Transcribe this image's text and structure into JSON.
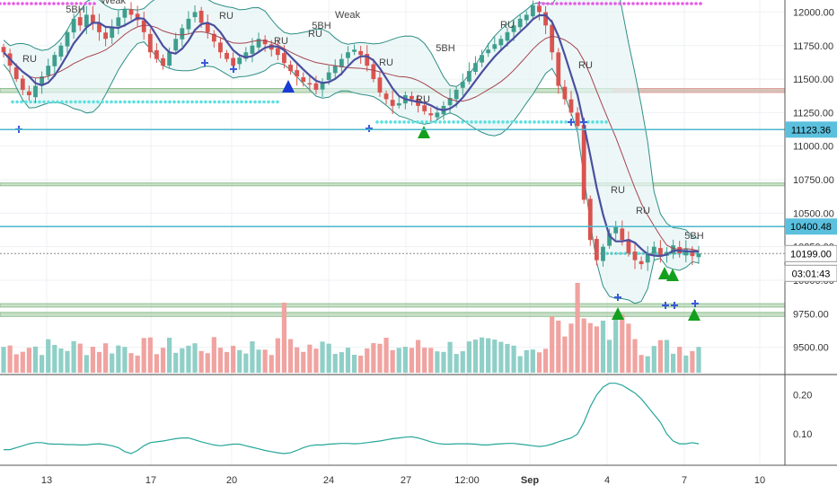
{
  "chart_data": [
    {
      "type": "candlestick",
      "panel": "price",
      "ylim": [
        9310,
        12090
      ],
      "y_ticks": [
        "12000.00",
        "11750.00",
        "11500.00",
        "11250.00",
        "11000.00",
        "10750.00",
        "10500.00",
        "10250.00",
        "10000.00",
        "9750.00",
        "9500.00"
      ],
      "x_ticks": [
        "13",
        "17",
        "20",
        "24",
        "27",
        "12:00",
        "Sep",
        "4",
        "7",
        "10"
      ],
      "price_tags": [
        {
          "label": "11123.36",
          "kind": "level",
          "color": "#5bc0de"
        },
        {
          "label": "10400.48",
          "kind": "level",
          "color": "#5bc0de"
        },
        {
          "label": "10199.00",
          "kind": "last",
          "color": "#ffffff"
        },
        {
          "label": "03:01:43",
          "kind": "countdown",
          "color": "#ffffff"
        }
      ],
      "horizontal_levels": [
        {
          "value": 11123.36,
          "color": "#48b9cc"
        },
        {
          "value": 10400.48,
          "color": "#48b9cc"
        },
        {
          "value": 10199,
          "color": "#888888",
          "dashed": true
        }
      ],
      "zones": [
        {
          "from": 11400,
          "to": 11430,
          "color": "#8fbf8f"
        },
        {
          "from": 11400,
          "to": 11430,
          "color": "#e0a0a0",
          "start": "late"
        },
        {
          "from": 10705,
          "to": 10725,
          "color": "#8fbf8f"
        },
        {
          "from": 9800,
          "to": 9825,
          "color": "#8fbf8f"
        },
        {
          "from": 9730,
          "to": 9760,
          "color": "#8fbf8f"
        }
      ],
      "signal_labels": [
        "5BH",
        "Weak",
        "RU",
        "RU",
        "RU",
        "RU",
        "Weak",
        "5BH",
        "RU",
        "5BH",
        "RU",
        "RU",
        "RU",
        "RU",
        "RU",
        "5BH"
      ],
      "closes": [
        11700,
        11600,
        11500,
        11420,
        11380,
        11450,
        11520,
        11600,
        11680,
        11750,
        11850,
        11950,
        11900,
        11980,
        11920,
        11850,
        11800,
        11880,
        11960,
        12020,
        11980,
        11940,
        11850,
        11700,
        11650,
        11600,
        11700,
        11800,
        11880,
        11950,
        12000,
        11920,
        11850,
        11780,
        11700,
        11650,
        11600,
        11660,
        11700,
        11750,
        11800,
        11760,
        11720,
        11680,
        11620,
        11560,
        11520,
        11480,
        11460,
        11420,
        11480,
        11550,
        11600,
        11650,
        11700,
        11720,
        11680,
        11600,
        11500,
        11400,
        11350,
        11300,
        11320,
        11380,
        11350,
        11300,
        11260,
        11230,
        11250,
        11300,
        11360,
        11420,
        11480,
        11560,
        11620,
        11680,
        11720,
        11760,
        11800,
        11850,
        11900,
        11950,
        11980,
        12050,
        12000,
        11900,
        11700,
        11450,
        11350,
        11250,
        11150,
        10600,
        10300,
        10150,
        10250,
        10350,
        10400,
        10300,
        10200,
        10150,
        10120,
        10200,
        10250,
        10180,
        10210,
        10260,
        10200,
        10230,
        10180,
        10199
      ],
      "indicator_lines": [
        "bollinger_upper",
        "bollinger_lower",
        "moving_average_fast",
        "moving_average_slow"
      ],
      "volume_bars": true
    },
    {
      "type": "line",
      "panel": "oscillator",
      "ylim": [
        0.02,
        0.25
      ],
      "y_ticks": [
        "0.20",
        "0.10"
      ],
      "series": [
        {
          "values": [
            0.06,
            0.06,
            0.065,
            0.07,
            0.075,
            0.078,
            0.078,
            0.075,
            0.074,
            0.074,
            0.073,
            0.073,
            0.072,
            0.072,
            0.074,
            0.075,
            0.073,
            0.07,
            0.065,
            0.055,
            0.05,
            0.058,
            0.07,
            0.078,
            0.08,
            0.082,
            0.085,
            0.088,
            0.09,
            0.09,
            0.085,
            0.08,
            0.076,
            0.072,
            0.07,
            0.072,
            0.074,
            0.074,
            0.07,
            0.066,
            0.062,
            0.058,
            0.055,
            0.052,
            0.05,
            0.052,
            0.058,
            0.065,
            0.07,
            0.072,
            0.072,
            0.074,
            0.075,
            0.076,
            0.076,
            0.075,
            0.076,
            0.078,
            0.08,
            0.082,
            0.085,
            0.088,
            0.09,
            0.092,
            0.093,
            0.09,
            0.085,
            0.08,
            0.076,
            0.074,
            0.074,
            0.075,
            0.075,
            0.075,
            0.074,
            0.072,
            0.072,
            0.074,
            0.075,
            0.076,
            0.076,
            0.074,
            0.072,
            0.07,
            0.068,
            0.07,
            0.074,
            0.08,
            0.085,
            0.09,
            0.1,
            0.13,
            0.17,
            0.2,
            0.22,
            0.23,
            0.23,
            0.225,
            0.215,
            0.205,
            0.19,
            0.17,
            0.15,
            0.13,
            0.1,
            0.082,
            0.075,
            0.075,
            0.078,
            0.075
          ],
          "color": "#26a69a"
        }
      ]
    }
  ],
  "colors": {
    "up": "#3e9e8e",
    "down": "#d9534f",
    "up_volume": "#8fcfc7",
    "down_volume": "#f0a3a0",
    "band_line": "#2f8f86",
    "band_fill": "#e6f4f3",
    "ma_fast": "#4b4f9e",
    "ma_slow": "#a64450",
    "cyan_dots": "#5ee0e0",
    "grid": "#eef1f4",
    "buy_triangle": "#14a01e",
    "blue_triangle": "#1a3ad6",
    "cross": "#3b5bd6",
    "magenta_dots": "#e65be6"
  }
}
